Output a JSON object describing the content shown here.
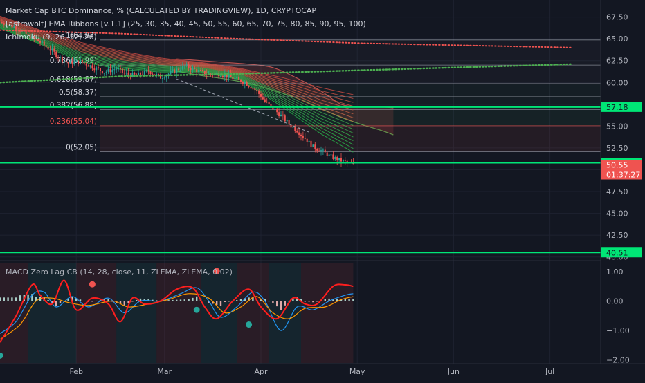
{
  "header": {
    "main_title": "Market Cap BTC Dominance, % (CALCULATED BY TRADINGVIEW), 1D, CRYPTOCAP",
    "indicator_ema": "[astrowolf] EMA Ribbons [v.1.1] (25, 30, 35, 40, 45, 50, 55, 60, 65, 70, 75, 80, 85, 90, 95, 100)",
    "indicator_ichimoku": "Ichimoku (9, 26, 52, 26)",
    "indicator_macd": "MACD Zero Lag CB (14, 28, close, 11, ZLEMA, ZLEMA, 0.02)"
  },
  "price_axis": {
    "ticks": [
      "67.50",
      "65.00",
      "62.50",
      "60.00",
      "57.50",
      "55.00",
      "52.50",
      "50.00",
      "47.50",
      "45.00",
      "42.50",
      "40.00"
    ],
    "badges": [
      {
        "label": "57.18",
        "kind": "level"
      },
      {
        "label": "50.79",
        "kind": "level"
      },
      {
        "label": "50.55",
        "kind": "last"
      },
      {
        "label": "01:37:27",
        "kind": "countdown"
      },
      {
        "label": "40.51",
        "kind": "level"
      }
    ]
  },
  "fib_labels": [
    {
      "text": "1(64.87)",
      "value": 64.87
    },
    {
      "text": "0.786(61.99)",
      "value": 61.99
    },
    {
      "text": "0.618(59.87)",
      "value": 59.87
    },
    {
      "text": "0.5(58.37)",
      "value": 58.37
    },
    {
      "text": "0.382(56.88)",
      "value": 56.88
    },
    {
      "text": "0.236(55.04)",
      "value": 55.04
    },
    {
      "text": "0(52.05)",
      "value": 52.05
    }
  ],
  "macd_axis": {
    "ticks": [
      "1.00",
      "0.00",
      "−1.00",
      "−2.00"
    ]
  },
  "time_axis": {
    "labels": [
      "Feb",
      "Mar",
      "Apr",
      "May",
      "Jun",
      "Jul"
    ]
  },
  "chart_data": {
    "type": "line",
    "title": "Market Cap BTC Dominance, % (CALCULATED BY TRADINGVIEW), 1D, CRYPTOCAP",
    "ylim": [
      39.5,
      68.5
    ],
    "horizontal_levels": [
      57.18,
      50.79,
      40.51
    ],
    "last_price": 50.55,
    "price_path": [
      [
        0,
        66.9
      ],
      [
        8,
        66.3
      ],
      [
        14,
        65.4
      ],
      [
        20,
        64.6
      ],
      [
        26,
        63.6
      ],
      [
        30,
        62.8
      ],
      [
        34,
        62.2
      ],
      [
        40,
        62.4
      ],
      [
        46,
        61.8
      ],
      [
        52,
        61.2
      ],
      [
        58,
        61.6
      ],
      [
        62,
        61.0
      ],
      [
        68,
        60.8
      ],
      [
        74,
        61.3
      ],
      [
        80,
        60.6
      ],
      [
        86,
        61.2
      ],
      [
        92,
        61.9
      ],
      [
        98,
        61.4
      ],
      [
        104,
        60.9
      ],
      [
        110,
        61.0
      ],
      [
        116,
        60.5
      ],
      [
        122,
        60.0
      ],
      [
        128,
        59.0
      ],
      [
        132,
        57.8
      ],
      [
        136,
        57.0
      ],
      [
        140,
        56.2
      ],
      [
        144,
        55.2
      ],
      [
        148,
        54.5
      ],
      [
        152,
        53.6
      ],
      [
        156,
        52.6
      ],
      [
        160,
        52.2
      ],
      [
        164,
        51.6
      ],
      [
        168,
        51.2
      ],
      [
        172,
        50.9
      ],
      [
        176,
        50.55
      ]
    ],
    "ema_fast": [
      [
        0,
        66.2
      ],
      [
        20,
        64.4
      ],
      [
        40,
        62.4
      ],
      [
        60,
        61.5
      ],
      [
        80,
        61.2
      ],
      [
        100,
        61.2
      ],
      [
        120,
        60.3
      ],
      [
        140,
        57.3
      ],
      [
        160,
        54.1
      ],
      [
        176,
        52.0
      ]
    ],
    "ema_slow": [
      [
        0,
        67.6
      ],
      [
        20,
        66.0
      ],
      [
        40,
        64.6
      ],
      [
        60,
        63.6
      ],
      [
        80,
        62.8
      ],
      [
        100,
        62.3
      ],
      [
        120,
        61.6
      ],
      [
        140,
        60.6
      ],
      [
        160,
        59.4
      ],
      [
        176,
        58.6
      ]
    ],
    "kumo_red": [
      [
        88,
        62.7
      ],
      [
        100,
        62.5
      ],
      [
        112,
        62.3
      ],
      [
        124,
        62.1
      ],
      [
        136,
        61.7
      ],
      [
        148,
        60.5
      ],
      [
        160,
        59.0
      ],
      [
        170,
        57.5
      ],
      [
        180,
        57.2
      ],
      [
        190,
        57.2
      ],
      [
        196,
        57.1
      ]
    ],
    "kumo_green": [
      [
        88,
        61.3
      ],
      [
        100,
        60.8
      ],
      [
        112,
        60.4
      ],
      [
        124,
        59.9
      ],
      [
        136,
        59.1
      ],
      [
        148,
        58.2
      ],
      [
        160,
        57.0
      ],
      [
        170,
        56.0
      ],
      [
        180,
        55.2
      ],
      [
        190,
        54.5
      ],
      [
        196,
        54.0
      ]
    ],
    "dotted_red_sma": [
      [
        0,
        66.0
      ],
      [
        60,
        65.6
      ],
      [
        120,
        65.0
      ],
      [
        180,
        64.5
      ],
      [
        285,
        64.0
      ]
    ],
    "dotted_green_sma": [
      [
        0,
        60.0
      ],
      [
        60,
        60.7
      ],
      [
        120,
        61.0
      ],
      [
        180,
        61.4
      ],
      [
        285,
        62.1
      ]
    ],
    "trendline_dashed": [
      [
        88,
        60.4
      ],
      [
        154,
        54.3
      ]
    ],
    "macd": {
      "signal_red": [
        [
          0,
          -1.4
        ],
        [
          8,
          -0.5
        ],
        [
          16,
          0.55
        ],
        [
          20,
          0.2
        ],
        [
          26,
          -0.1
        ],
        [
          32,
          0.7
        ],
        [
          38,
          -0.3
        ],
        [
          46,
          0.1
        ],
        [
          54,
          -0.1
        ],
        [
          60,
          -0.7
        ],
        [
          66,
          0.1
        ],
        [
          72,
          -0.1
        ],
        [
          80,
          0.0
        ],
        [
          88,
          0.4
        ],
        [
          96,
          0.45
        ],
        [
          102,
          -0.2
        ],
        [
          108,
          -0.6
        ],
        [
          116,
          0.0
        ],
        [
          124,
          0.4
        ],
        [
          130,
          -0.2
        ],
        [
          138,
          -0.6
        ],
        [
          146,
          0.1
        ],
        [
          152,
          -0.1
        ],
        [
          158,
          -0.1
        ],
        [
          166,
          0.5
        ],
        [
          172,
          0.55
        ],
        [
          176,
          0.5
        ]
      ],
      "macd_blue": [
        [
          0,
          -1.1
        ],
        [
          8,
          -0.7
        ],
        [
          16,
          0.2
        ],
        [
          22,
          0.3
        ],
        [
          28,
          -0.2
        ],
        [
          36,
          0.15
        ],
        [
          44,
          -0.2
        ],
        [
          54,
          0.1
        ],
        [
          62,
          -0.4
        ],
        [
          70,
          0.0
        ],
        [
          80,
          0.0
        ],
        [
          90,
          0.25
        ],
        [
          98,
          0.45
        ],
        [
          104,
          0.0
        ],
        [
          110,
          -0.55
        ],
        [
          118,
          -0.2
        ],
        [
          126,
          0.3
        ],
        [
          132,
          0.0
        ],
        [
          140,
          -1.0
        ],
        [
          148,
          -0.2
        ],
        [
          156,
          -0.3
        ],
        [
          164,
          0.0
        ],
        [
          172,
          0.2
        ],
        [
          176,
          0.25
        ]
      ],
      "signal_orange": [
        [
          0,
          -1.3
        ],
        [
          10,
          -0.8
        ],
        [
          18,
          0.0
        ],
        [
          26,
          0.1
        ],
        [
          34,
          -0.05
        ],
        [
          44,
          -0.15
        ],
        [
          56,
          0.0
        ],
        [
          64,
          -0.2
        ],
        [
          74,
          -0.1
        ],
        [
          84,
          0.05
        ],
        [
          94,
          0.25
        ],
        [
          104,
          0.1
        ],
        [
          112,
          -0.4
        ],
        [
          120,
          -0.2
        ],
        [
          128,
          0.15
        ],
        [
          136,
          -0.4
        ],
        [
          144,
          -0.6
        ],
        [
          152,
          -0.25
        ],
        [
          162,
          -0.2
        ],
        [
          170,
          0.05
        ],
        [
          176,
          0.15
        ]
      ],
      "dots": [
        {
          "x": 0,
          "y": -1.85,
          "color": "#26a69a"
        },
        {
          "x": 46,
          "y": 0.57,
          "color": "#ef5350"
        },
        {
          "x": 98,
          "y": -0.3,
          "color": "#26a69a"
        },
        {
          "x": 108,
          "y": 1.02,
          "color": "#ef5350"
        },
        {
          "x": 124,
          "y": -0.8,
          "color": "#26a69a"
        }
      ],
      "ylim": [
        -2.1,
        1.3
      ]
    },
    "x_labels": [
      "Feb",
      "Mar",
      "Apr",
      "May",
      "Jun",
      "Jul"
    ],
    "x_label_index": [
      38,
      82,
      130,
      178,
      226,
      274
    ]
  },
  "colors": {
    "background": "#131722",
    "grid": "#1e2230",
    "axis_text": "#b2b5be",
    "green_level": "#00e676",
    "red": "#ef5350",
    "teal": "#26a69a",
    "blue": "#2196f3",
    "orange": "#ff9800"
  }
}
